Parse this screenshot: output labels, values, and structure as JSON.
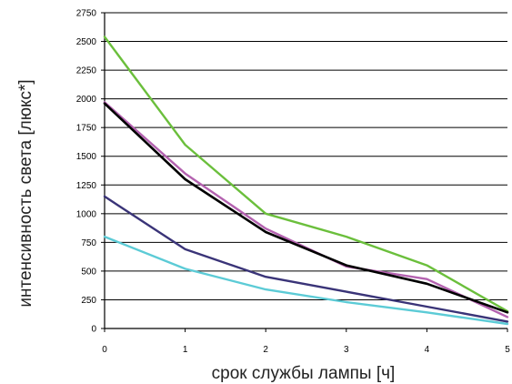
{
  "chart_data": {
    "type": "line",
    "title": "",
    "xlabel": "срок службы лампы [ч]",
    "ylabel": "интенсивность света [люкс*]",
    "x": [
      0,
      1,
      2,
      3,
      4,
      5
    ],
    "x_ticks": [
      "0",
      "1",
      "2",
      "3",
      "4",
      "5"
    ],
    "y_ticks": [
      "0",
      "250",
      "500",
      "750",
      "1000",
      "1250",
      "1500",
      "1750",
      "2000",
      "2250",
      "2500",
      "2750"
    ],
    "xlim": [
      0,
      5
    ],
    "ylim": [
      0,
      2750
    ],
    "grid": "horizontal",
    "legend": "none",
    "series": [
      {
        "color": "#6bbf3c",
        "values": [
          2540,
          1600,
          1000,
          800,
          550,
          150
        ]
      },
      {
        "color": "#b462b0",
        "values": [
          1970,
          1350,
          870,
          540,
          430,
          100
        ]
      },
      {
        "color": "#000000",
        "values": [
          1960,
          1300,
          840,
          550,
          390,
          140
        ]
      },
      {
        "color": "#3a3478",
        "values": [
          1150,
          690,
          450,
          320,
          190,
          60
        ]
      },
      {
        "color": "#5ccbd6",
        "values": [
          800,
          520,
          340,
          230,
          140,
          40
        ]
      }
    ]
  }
}
